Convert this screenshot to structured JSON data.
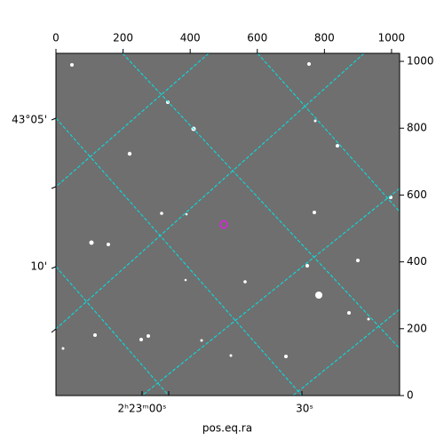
{
  "chart_data": {
    "type": "image",
    "xlabel": "pos.eq.ra",
    "xlim": [
      0,
      1024
    ],
    "ylim": [
      0,
      1024
    ],
    "xticks": [
      0,
      200,
      400,
      600,
      800,
      1000
    ],
    "yticks": [
      0,
      200,
      400,
      600,
      800,
      1000
    ],
    "ra_tick_labels": [
      "2ʰ23ᵐ00ˢ",
      "30ˢ"
    ],
    "dec_tick_labels": [
      "43°05'",
      "10'"
    ],
    "grid_color": "#00e5e5",
    "marker": {
      "x": 500,
      "y": 512,
      "color": "#e020e0"
    }
  }
}
